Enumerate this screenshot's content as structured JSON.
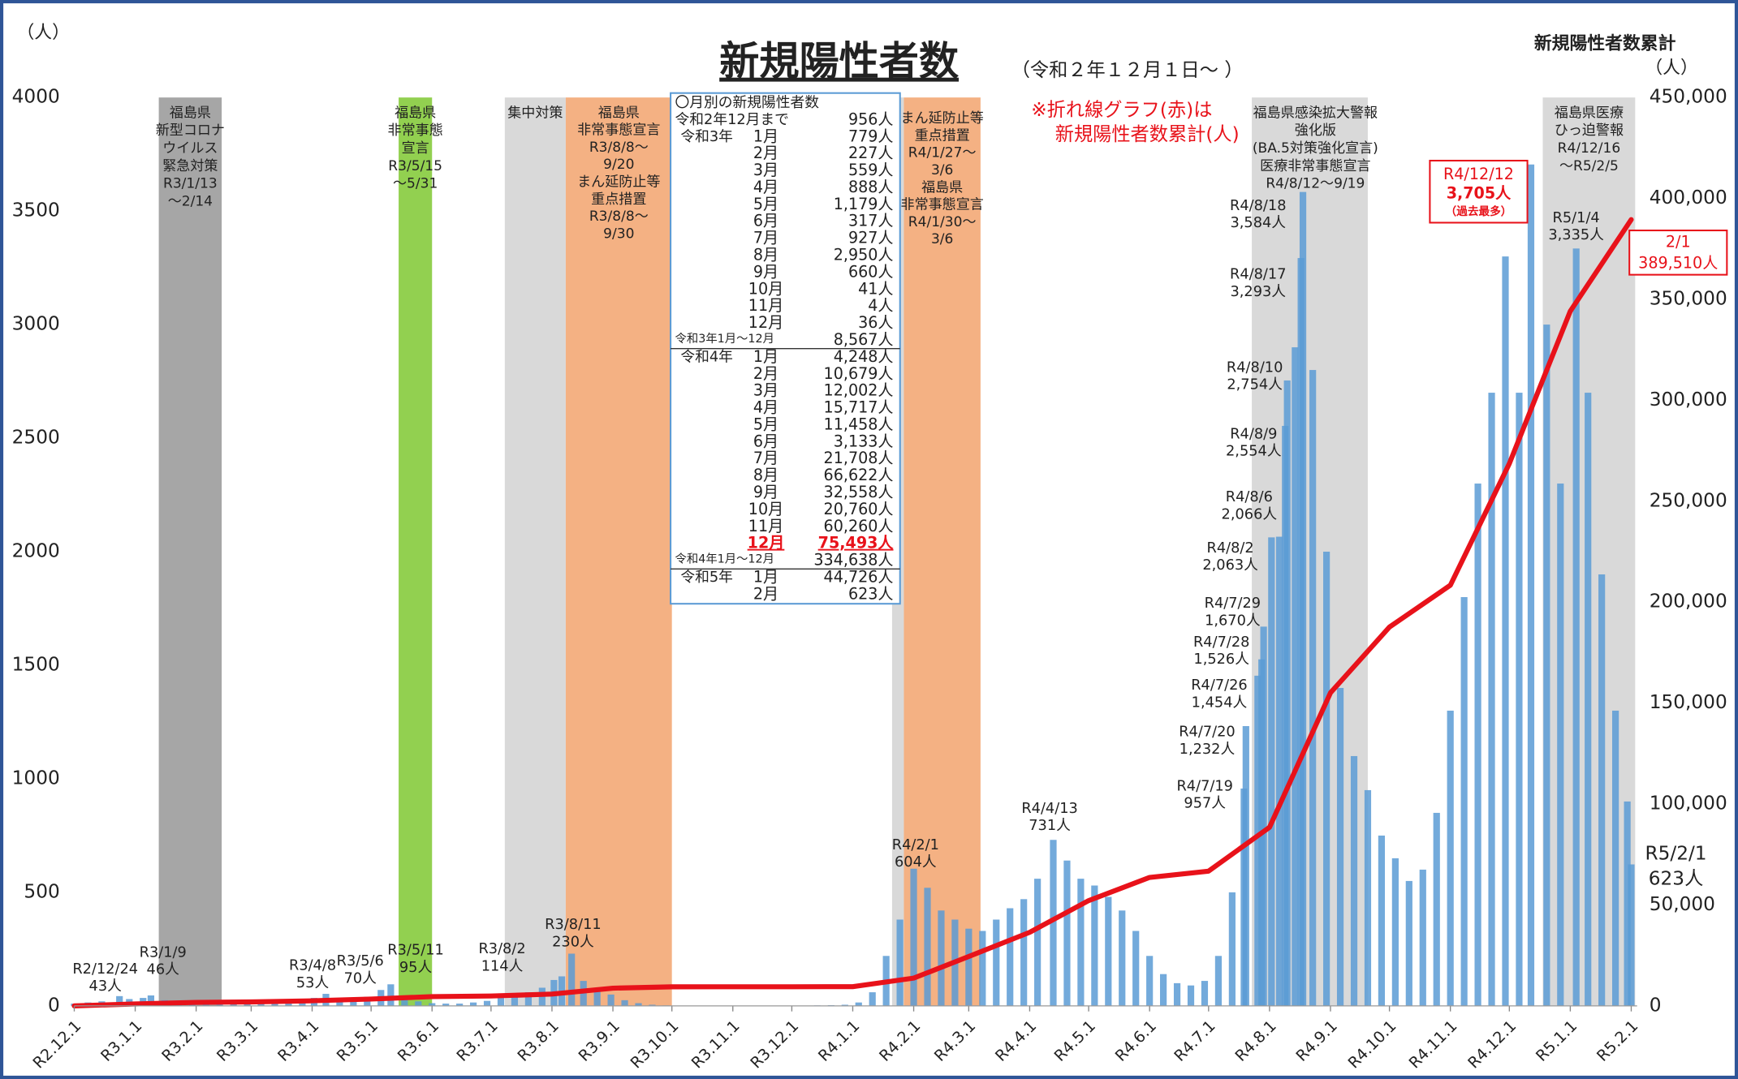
{
  "chart_data": {
    "type": "bar",
    "title": "新規陽性者数",
    "subtitle": "（令和２年１２月１日～ ）",
    "y_unit": "（人）",
    "y2_title": "新規陽性者数累計",
    "y2_unit": "（人）",
    "note": [
      "※折れ線グラフ(赤)は",
      "新規陽性者数累計(人)"
    ],
    "xlim": [
      0,
      795
    ],
    "xticks": [
      {
        "value": 0,
        "label": "R2.12.1"
      },
      {
        "value": 31,
        "label": "R3.1.1"
      },
      {
        "value": 62,
        "label": "R3.2.1"
      },
      {
        "value": 90,
        "label": "R3.3.1"
      },
      {
        "value": 121,
        "label": "R3.4.1"
      },
      {
        "value": 151,
        "label": "R3.5.1"
      },
      {
        "value": 182,
        "label": "R3.6.1"
      },
      {
        "value": 212,
        "label": "R3.7.1"
      },
      {
        "value": 243,
        "label": "R3.8.1"
      },
      {
        "value": 274,
        "label": "R3.9.1"
      },
      {
        "value": 304,
        "label": "R3.10.1"
      },
      {
        "value": 335,
        "label": "R3.11.1"
      },
      {
        "value": 365,
        "label": "R3.12.1"
      },
      {
        "value": 396,
        "label": "R4.1.1"
      },
      {
        "value": 427,
        "label": "R4.2.1"
      },
      {
        "value": 455,
        "label": "R4.3.1"
      },
      {
        "value": 486,
        "label": "R4.4.1"
      },
      {
        "value": 516,
        "label": "R4.5.1"
      },
      {
        "value": 547,
        "label": "R4.6.1"
      },
      {
        "value": 577,
        "label": "R4.7.1"
      },
      {
        "value": 608,
        "label": "R4.8.1"
      },
      {
        "value": 639,
        "label": "R4.9.1"
      },
      {
        "value": 669,
        "label": "R4.10.1"
      },
      {
        "value": 700,
        "label": "R4.11.1"
      },
      {
        "value": 730,
        "label": "R4.12.1"
      },
      {
        "value": 761,
        "label": "R5.1.1"
      },
      {
        "value": 792,
        "label": "R5.2.1"
      }
    ],
    "ylim": [
      0,
      4000
    ],
    "yticks": [
      0,
      500,
      1000,
      1500,
      2000,
      2500,
      3000,
      3500,
      4000
    ],
    "y2lim": [
      0,
      450000
    ],
    "y2ticks": [
      0,
      {
        "value": 50000,
        "label": "50,000"
      },
      {
        "value": 100000,
        "label": "100,000"
      },
      {
        "value": 150000,
        "label": "150,000"
      },
      {
        "value": 200000,
        "label": "200,000"
      },
      {
        "value": 250000,
        "label": "250,000"
      },
      {
        "value": 300000,
        "label": "300,000"
      },
      {
        "value": 350000,
        "label": "350,000"
      },
      {
        "value": 400000,
        "label": "400,000"
      },
      {
        "value": 450000,
        "label": "450,000"
      }
    ],
    "series": [
      {
        "type": "bar",
        "color": "#5b9bd5",
        "x": [
          0,
          7,
          14,
          23,
          28,
          35,
          39,
          46,
          53,
          60,
          67,
          74,
          81,
          88,
          95,
          102,
          109,
          116,
          122,
          128,
          135,
          142,
          149,
          156,
          161,
          168,
          175,
          182,
          189,
          196,
          203,
          210,
          217,
          224,
          231,
          238,
          244,
          248,
          253,
          259,
          266,
          273,
          280,
          287,
          294,
          301,
          308,
          315,
          322,
          329,
          336,
          343,
          350,
          357,
          364,
          371,
          378,
          385,
          392,
          399,
          406,
          413,
          420,
          427,
          434,
          441,
          448,
          455,
          462,
          469,
          476,
          483,
          490,
          498,
          505,
          512,
          519,
          526,
          533,
          540,
          547,
          554,
          561,
          568,
          575,
          582,
          589,
          595,
          596,
          602,
          604,
          605,
          609,
          613,
          616,
          617,
          621,
          624,
          625,
          630,
          637,
          644,
          651,
          658,
          665,
          672,
          679,
          686,
          693,
          700,
          707,
          714,
          721,
          728,
          735,
          741,
          749,
          756,
          764,
          770,
          777,
          784,
          790,
          792
        ],
        "values": [
          10,
          15,
          20,
          43,
          30,
          35,
          46,
          25,
          15,
          10,
          8,
          6,
          8,
          12,
          15,
          18,
          22,
          28,
          35,
          53,
          35,
          30,
          40,
          70,
          95,
          45,
          20,
          12,
          10,
          10,
          15,
          22,
          35,
          45,
          60,
          80,
          114,
          130,
          230,
          110,
          80,
          50,
          25,
          12,
          5,
          2,
          1,
          1,
          1,
          0,
          0,
          1,
          0,
          1,
          1,
          1,
          2,
          3,
          5,
          15,
          60,
          220,
          380,
          604,
          520,
          420,
          380,
          340,
          330,
          380,
          430,
          470,
          560,
          731,
          640,
          560,
          530,
          480,
          420,
          330,
          220,
          140,
          100,
          90,
          110,
          220,
          500,
          957,
          1232,
          1454,
          1526,
          1670,
          2063,
          2066,
          2554,
          2754,
          2900,
          3293,
          3584,
          2800,
          2000,
          1400,
          1100,
          950,
          750,
          650,
          550,
          600,
          850,
          1300,
          1800,
          2300,
          2700,
          3300,
          2700,
          3705,
          3000,
          2300,
          3335,
          2700,
          1900,
          1300,
          900,
          623
        ]
      },
      {
        "type": "line",
        "axis": "y2",
        "color": "#e8121a",
        "x": [
          0,
          31,
          62,
          90,
          121,
          151,
          182,
          212,
          243,
          274,
          304,
          335,
          365,
          396,
          427,
          455,
          486,
          516,
          547,
          577,
          608,
          639,
          669,
          700,
          730,
          761,
          792
        ],
        "values": [
          0,
          956,
          1735,
          1962,
          2521,
          3409,
          4588,
          4905,
          5832,
          8782,
          9442,
          9483,
          9487,
          9523,
          13771,
          24450,
          36452,
          52169,
          63627,
          66760,
          88468,
          155090,
          187648,
          208408,
          268668,
          344161,
          389510
        ]
      }
    ],
    "periods": [
      {
        "x_range": [
          43,
          75
        ],
        "color": "#a6a6a6",
        "lines": [
          "福島県",
          "新型コロナ",
          "ウイルス",
          "緊急対策",
          "R3/1/13",
          "～2/14"
        ]
      },
      {
        "x_range": [
          165,
          182
        ],
        "color": "#92d050",
        "lines": [
          "福島県",
          "非常事態",
          "宣言",
          "R3/5/15",
          "～5/31"
        ]
      },
      {
        "x_range": [
          219,
          250
        ],
        "color": "#d9d9d9",
        "lines": [
          "集中対策"
        ]
      },
      {
        "x_range": [
          250,
          304
        ],
        "color": "#f4b183",
        "lines": [
          "福島県",
          "非常事態宣言",
          "R3/8/8～",
          "9/20",
          "まん延防止等",
          "重点措置",
          "R3/8/8～",
          "9/30"
        ]
      },
      {
        "x_range": [
          416,
          422
        ],
        "color": "#d9d9d9",
        "lines": []
      },
      {
        "x_range": [
          422,
          461
        ],
        "color": "#f4b183",
        "lines": [
          "まん延防止等",
          "重点措置",
          "R4/1/27～",
          "3/6",
          "福島県",
          "非常事態宣言",
          "R4/1/30～",
          "3/6"
        ]
      },
      {
        "x_range": [
          599,
          658
        ],
        "color": "#d9d9d9",
        "lines": [
          "福島県感染拡大警報",
          "強化版",
          "(BA.5対策強化宣言)",
          "医療非常事態宣言",
          "R4/8/12～9/19"
        ]
      },
      {
        "x_range": [
          747,
          794
        ],
        "color": "#d9d9d9",
        "lines": [
          "福島県医療",
          "ひっ迫警報",
          "R4/12/16",
          "～R5/2/5"
        ]
      }
    ],
    "annotations": [
      [
        "R2/12/24",
        "43人"
      ],
      [
        "R3/1/9",
        "46人"
      ],
      [
        "R3/4/8",
        "53人"
      ],
      [
        "R3/5/6",
        "70人"
      ],
      [
        "R3/5/11",
        "95人"
      ],
      [
        "R3/8/2",
        "114人"
      ],
      [
        "R3/8/11",
        "230人"
      ],
      [
        "R4/2/1",
        "604人"
      ],
      [
        "R4/4/13",
        "731人"
      ],
      [
        "R4/7/19",
        "957人"
      ],
      [
        "R4/7/20",
        "1,232人"
      ],
      [
        "R4/7/26",
        "1,454人"
      ],
      [
        "R4/7/28",
        "1,526人"
      ],
      [
        "R4/7/29",
        "1,670人"
      ],
      [
        "R4/8/2",
        "2,063人"
      ],
      [
        "R4/8/6",
        "2,066人"
      ],
      [
        "R4/8/9",
        "2,554人"
      ],
      [
        "R4/8/10",
        "2,754人"
      ],
      [
        "R4/8/17",
        "3,293人"
      ],
      [
        "R4/8/18",
        "3,584人"
      ],
      [
        "R5/1/4",
        "3,335人"
      ]
    ],
    "peak_label": [
      "R4/12/12",
      "3,705人",
      "（過去最多）"
    ],
    "latest_cumulative": [
      "2/1",
      "389,510人"
    ],
    "latest_daily": [
      "R5/2/1",
      "623人"
    ],
    "monthly_table": {
      "title": "〇月別の新規陽性者数",
      "rows": [
        {
          "group": "令和2年12月まで",
          "value": "956人"
        },
        {
          "group": "令和3年",
          "month": "1月",
          "value": "779人"
        },
        {
          "month": "2月",
          "value": "227人"
        },
        {
          "month": "3月",
          "value": "559人"
        },
        {
          "month": "4月",
          "value": "888人"
        },
        {
          "month": "5月",
          "value": "1,179人"
        },
        {
          "month": "6月",
          "value": "317人"
        },
        {
          "month": "7月",
          "value": "927人"
        },
        {
          "month": "8月",
          "value": "2,950人"
        },
        {
          "month": "9月",
          "value": "660人"
        },
        {
          "month": "10月",
          "value": "41人"
        },
        {
          "month": "11月",
          "value": "4人"
        },
        {
          "month": "12月",
          "value": "36人"
        },
        {
          "total": "令和3年1月～12月",
          "value": "8,567人"
        },
        {
          "group": "令和4年",
          "month": "1月",
          "value": "4,248人"
        },
        {
          "month": "2月",
          "value": "10,679人"
        },
        {
          "month": "3月",
          "value": "12,002人"
        },
        {
          "month": "4月",
          "value": "15,717人"
        },
        {
          "month": "5月",
          "value": "11,458人"
        },
        {
          "month": "6月",
          "value": "3,133人"
        },
        {
          "month": "7月",
          "value": "21,708人"
        },
        {
          "month": "8月",
          "value": "66,622人"
        },
        {
          "month": "9月",
          "value": "32,558人"
        },
        {
          "month": "10月",
          "value": "20,760人"
        },
        {
          "month": "11月",
          "value": "60,260人"
        },
        {
          "month": "12月",
          "value": "75,493人",
          "highlight": true
        },
        {
          "total": "令和4年1月～12月",
          "value": "334,638人"
        },
        {
          "group": "令和5年",
          "month": "1月",
          "value": "44,726人"
        },
        {
          "month": "2月",
          "value": "623人"
        }
      ]
    }
  }
}
